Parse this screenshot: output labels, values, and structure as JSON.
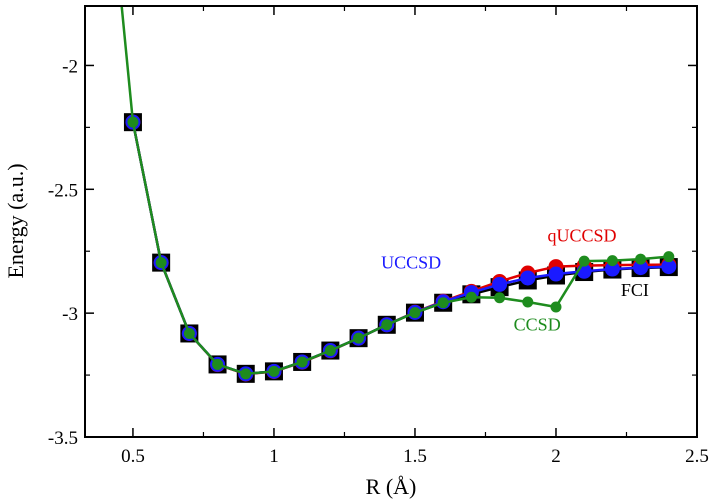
{
  "chart_data": {
    "type": "line",
    "title": "",
    "xlabel": "R (Å)",
    "ylabel": "Energy (a.u.)",
    "xlim": [
      0.33,
      2.5
    ],
    "ylim": [
      -3.5,
      -1.76
    ],
    "x_ticks": [
      0.5,
      1,
      1.5,
      2,
      2.5
    ],
    "x_tick_labels": [
      "0.5",
      "1",
      "1.5",
      "2",
      "2.5"
    ],
    "y_ticks": [
      -3.5,
      -3,
      -2.5,
      -2
    ],
    "y_tick_labels": [
      "-3.5",
      "-3",
      "-2.5",
      "-2"
    ],
    "grid": false,
    "legend": "none",
    "x": [
      0.5,
      0.6,
      0.7,
      0.8,
      0.9,
      1.0,
      1.1,
      1.2,
      1.3,
      1.4,
      1.5,
      1.6,
      1.7,
      1.8,
      1.9,
      2.0,
      2.1,
      2.2,
      2.3,
      2.4
    ],
    "series": [
      {
        "name": "FCI",
        "color": "#000000",
        "marker": "square",
        "values": [
          -2.229,
          -2.796,
          -3.082,
          -3.207,
          -3.245,
          -3.235,
          -3.197,
          -3.151,
          -3.101,
          -3.047,
          -2.998,
          -2.958,
          -2.924,
          -2.895,
          -2.868,
          -2.848,
          -2.834,
          -2.824,
          -2.818,
          -2.814
        ]
      },
      {
        "name": "qUCCSD",
        "color": "#e00000",
        "marker": "circle",
        "values": [
          -2.229,
          -2.796,
          -3.082,
          -3.208,
          -3.246,
          -3.236,
          -3.198,
          -3.152,
          -3.101,
          -3.047,
          -2.996,
          -2.952,
          -2.912,
          -2.872,
          -2.838,
          -2.812,
          -2.808,
          -2.806,
          -2.805,
          -2.804
        ]
      },
      {
        "name": "UCCSD",
        "color": "#1a1aff",
        "marker": "circle",
        "values": [
          -2.229,
          -2.796,
          -3.082,
          -3.207,
          -3.245,
          -3.235,
          -3.197,
          -3.151,
          -3.101,
          -3.047,
          -2.997,
          -2.954,
          -2.917,
          -2.884,
          -2.858,
          -2.842,
          -2.831,
          -2.822,
          -2.816,
          -2.812
        ]
      },
      {
        "name": "CCSD",
        "color": "#1e8c1e",
        "marker": "circle",
        "values": [
          -2.229,
          -2.796,
          -3.082,
          -3.207,
          -3.245,
          -3.235,
          -3.197,
          -3.151,
          -3.101,
          -3.047,
          -2.998,
          -2.958,
          -2.936,
          -2.938,
          -2.955,
          -2.975,
          -2.79,
          -2.788,
          -2.782,
          -2.772
        ]
      }
    ],
    "green_curve_start": {
      "x": 0.46,
      "y": -1.76
    },
    "annotations": [
      {
        "text": "qUCCSD",
        "color": "#e00000",
        "x": 1.97,
        "y": -2.71
      },
      {
        "text": "UCCSD",
        "color": "#1a1aff",
        "x": 1.38,
        "y": -2.82
      },
      {
        "text": "FCI",
        "color": "#000000",
        "x": 2.23,
        "y": -2.93
      },
      {
        "text": "CCSD",
        "color": "#1e8c1e",
        "x": 1.85,
        "y": -3.07
      }
    ]
  }
}
